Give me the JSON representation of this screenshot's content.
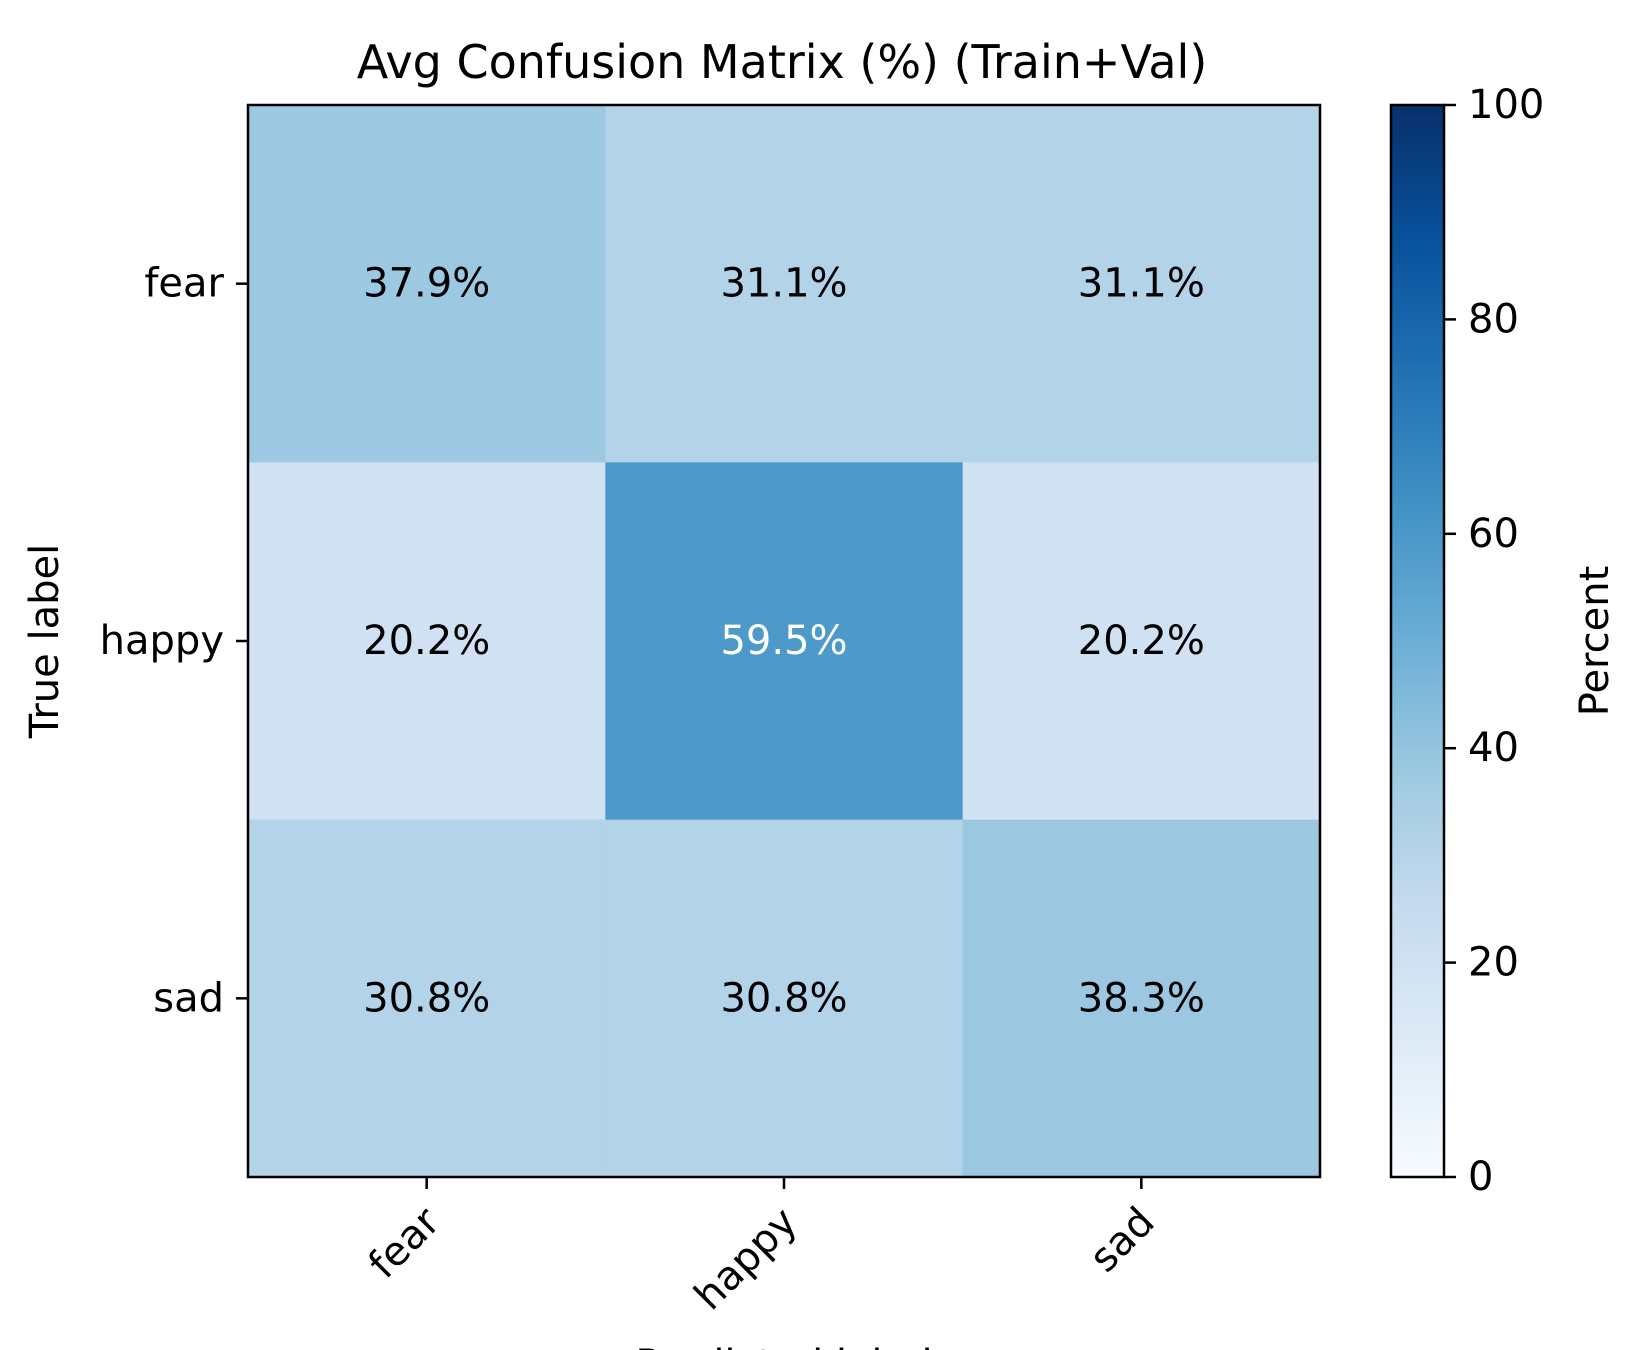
{
  "chart_data": {
    "type": "heatmap",
    "title": "Avg Confusion Matrix (%) (Train+Val)",
    "xlabel": "Predicted label",
    "ylabel": "True label",
    "x_categories": [
      "fear",
      "happy",
      "sad"
    ],
    "y_categories": [
      "fear",
      "happy",
      "sad"
    ],
    "values": [
      [
        37.9,
        31.1,
        31.1
      ],
      [
        20.2,
        59.5,
        20.2
      ],
      [
        30.8,
        30.8,
        38.3
      ]
    ],
    "cell_labels": [
      [
        "37.9%",
        "31.1%",
        "31.1%"
      ],
      [
        "20.2%",
        "59.5%",
        "20.2%"
      ],
      [
        "30.8%",
        "30.8%",
        "38.3%"
      ]
    ],
    "colormap": "Blues",
    "colorbar": {
      "label": "Percent",
      "range": [
        0,
        100
      ],
      "ticks": [
        "0",
        "20",
        "40",
        "60",
        "80",
        "100"
      ]
    },
    "text_colors": {
      "dark": "#000000",
      "light": "#ffffff"
    }
  }
}
